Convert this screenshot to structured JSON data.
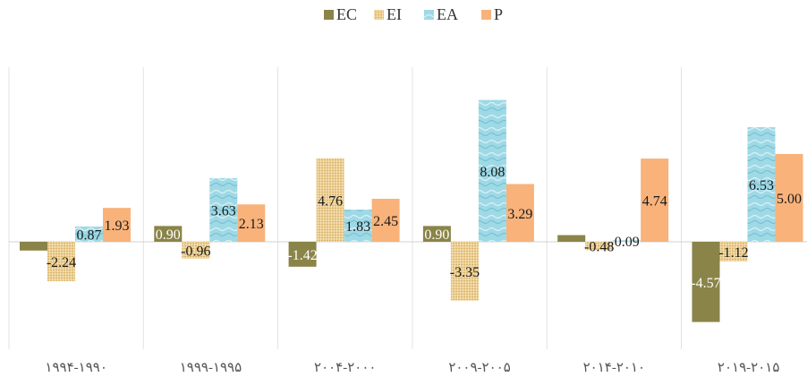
{
  "chart_data": {
    "type": "bar",
    "title": "",
    "xlabel": "",
    "ylabel": "",
    "legend_position": "top",
    "grid": "vertical category separators only",
    "categories": [
      "۱۹۹۴-۱۹۹۰",
      "۱۹۹۹-۱۹۹۵",
      "۲۰۰۴-۲۰۰۰",
      "۲۰۰۹-۲۰۰۵",
      "۲۰۱۴-۲۰۱۰",
      "۲۰۱۹-۲۰۱۵"
    ],
    "series": [
      {
        "name": "EC",
        "color": "#8a8448",
        "pattern": "solid",
        "values": [
          -0.5,
          0.9,
          -1.42,
          0.9,
          0.38,
          -4.57
        ],
        "labels": [
          "",
          "0.90",
          "-1.42",
          "0.90",
          "",
          "-4.57"
        ]
      },
      {
        "name": "EI",
        "color": "#e8c98a",
        "pattern": "burlap",
        "values": [
          -2.24,
          -0.96,
          4.76,
          -3.35,
          -0.48,
          -1.12
        ],
        "labels": [
          "-2.24",
          "-0.96",
          "4.76",
          "-3.35",
          "-0.48",
          "-1.12"
        ]
      },
      {
        "name": "EA",
        "color": "#9fd9e6",
        "pattern": "water",
        "values": [
          0.87,
          3.63,
          1.83,
          8.08,
          0.09,
          6.53
        ],
        "labels": [
          "0.87",
          "3.63",
          "1.83",
          "8.08",
          "0.09",
          "6.53"
        ]
      },
      {
        "name": "P",
        "color": "#f8b27a",
        "pattern": "solid",
        "values": [
          1.93,
          2.13,
          2.45,
          3.29,
          4.74,
          5.0
        ],
        "labels": [
          "1.93",
          "2.13",
          "2.45",
          "3.29",
          "4.74",
          "5.00"
        ]
      }
    ],
    "ylim": [
      -6,
      9
    ]
  }
}
